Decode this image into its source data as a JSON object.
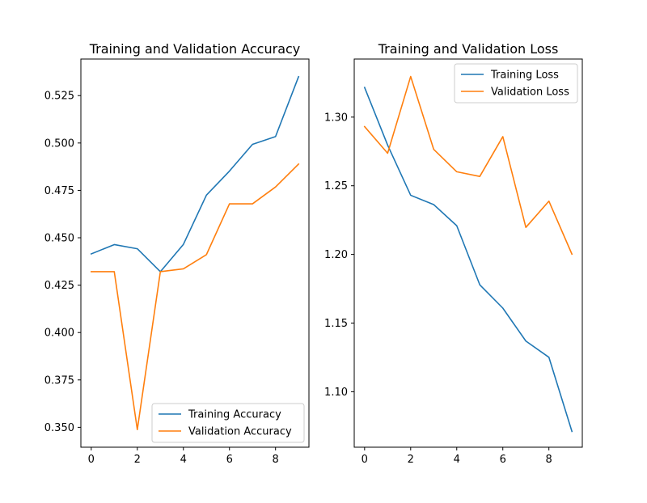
{
  "figure": {
    "background": "#ffffff"
  },
  "chart_data": [
    {
      "type": "line",
      "title": "Training and Validation Accuracy",
      "xlabel": "",
      "ylabel": "",
      "x": [
        0,
        1,
        2,
        3,
        4,
        5,
        6,
        7,
        8,
        9
      ],
      "xlim": [
        -0.45,
        9.45
      ],
      "ylim": [
        0.3395,
        0.5443
      ],
      "xticks": [
        0,
        2,
        4,
        6,
        8
      ],
      "yticks": [
        0.35,
        0.375,
        0.4,
        0.425,
        0.45,
        0.475,
        0.5,
        0.525
      ],
      "xtick_labels": [
        "0",
        "2",
        "4",
        "6",
        "8"
      ],
      "ytick_labels": [
        "0.350",
        "0.375",
        "0.400",
        "0.425",
        "0.450",
        "0.475",
        "0.500",
        "0.525"
      ],
      "grid": false,
      "legend_position": "lower-right",
      "series": [
        {
          "name": "Training Accuracy",
          "color": "#1f77b4",
          "values": [
            0.4415,
            0.4464,
            0.4442,
            0.4321,
            0.4465,
            0.4725,
            0.4852,
            0.4993,
            0.5034,
            0.535
          ]
        },
        {
          "name": "Validation Accuracy",
          "color": "#ff7f0e",
          "values": [
            0.4321,
            0.4321,
            0.3488,
            0.4321,
            0.4336,
            0.4411,
            0.4679,
            0.4679,
            0.4768,
            0.4889
          ]
        }
      ]
    },
    {
      "type": "line",
      "title": "Training and Validation Loss",
      "xlabel": "",
      "ylabel": "",
      "x": [
        0,
        1,
        2,
        3,
        4,
        5,
        6,
        7,
        8,
        9
      ],
      "xlim": [
        -0.45,
        9.45
      ],
      "ylim": [
        1.0596,
        1.3423
      ],
      "xticks": [
        0,
        2,
        4,
        6,
        8
      ],
      "yticks": [
        1.1,
        1.15,
        1.2,
        1.25,
        1.3
      ],
      "xtick_labels": [
        "0",
        "2",
        "4",
        "6",
        "8"
      ],
      "ytick_labels": [
        "1.10",
        "1.15",
        "1.20",
        "1.25",
        "1.30"
      ],
      "grid": false,
      "legend_position": "upper-right",
      "series": [
        {
          "name": "Training Loss",
          "color": "#1f77b4",
          "values": [
            1.3216,
            1.2796,
            1.2431,
            1.2363,
            1.2209,
            1.1779,
            1.1609,
            1.1369,
            1.1251,
            1.0711
          ]
        },
        {
          "name": "Validation Loss",
          "color": "#ff7f0e",
          "values": [
            1.2931,
            1.2737,
            1.3296,
            1.2765,
            1.2602,
            1.2568,
            1.2858,
            1.2197,
            1.2388,
            1.2002
          ]
        }
      ]
    }
  ]
}
